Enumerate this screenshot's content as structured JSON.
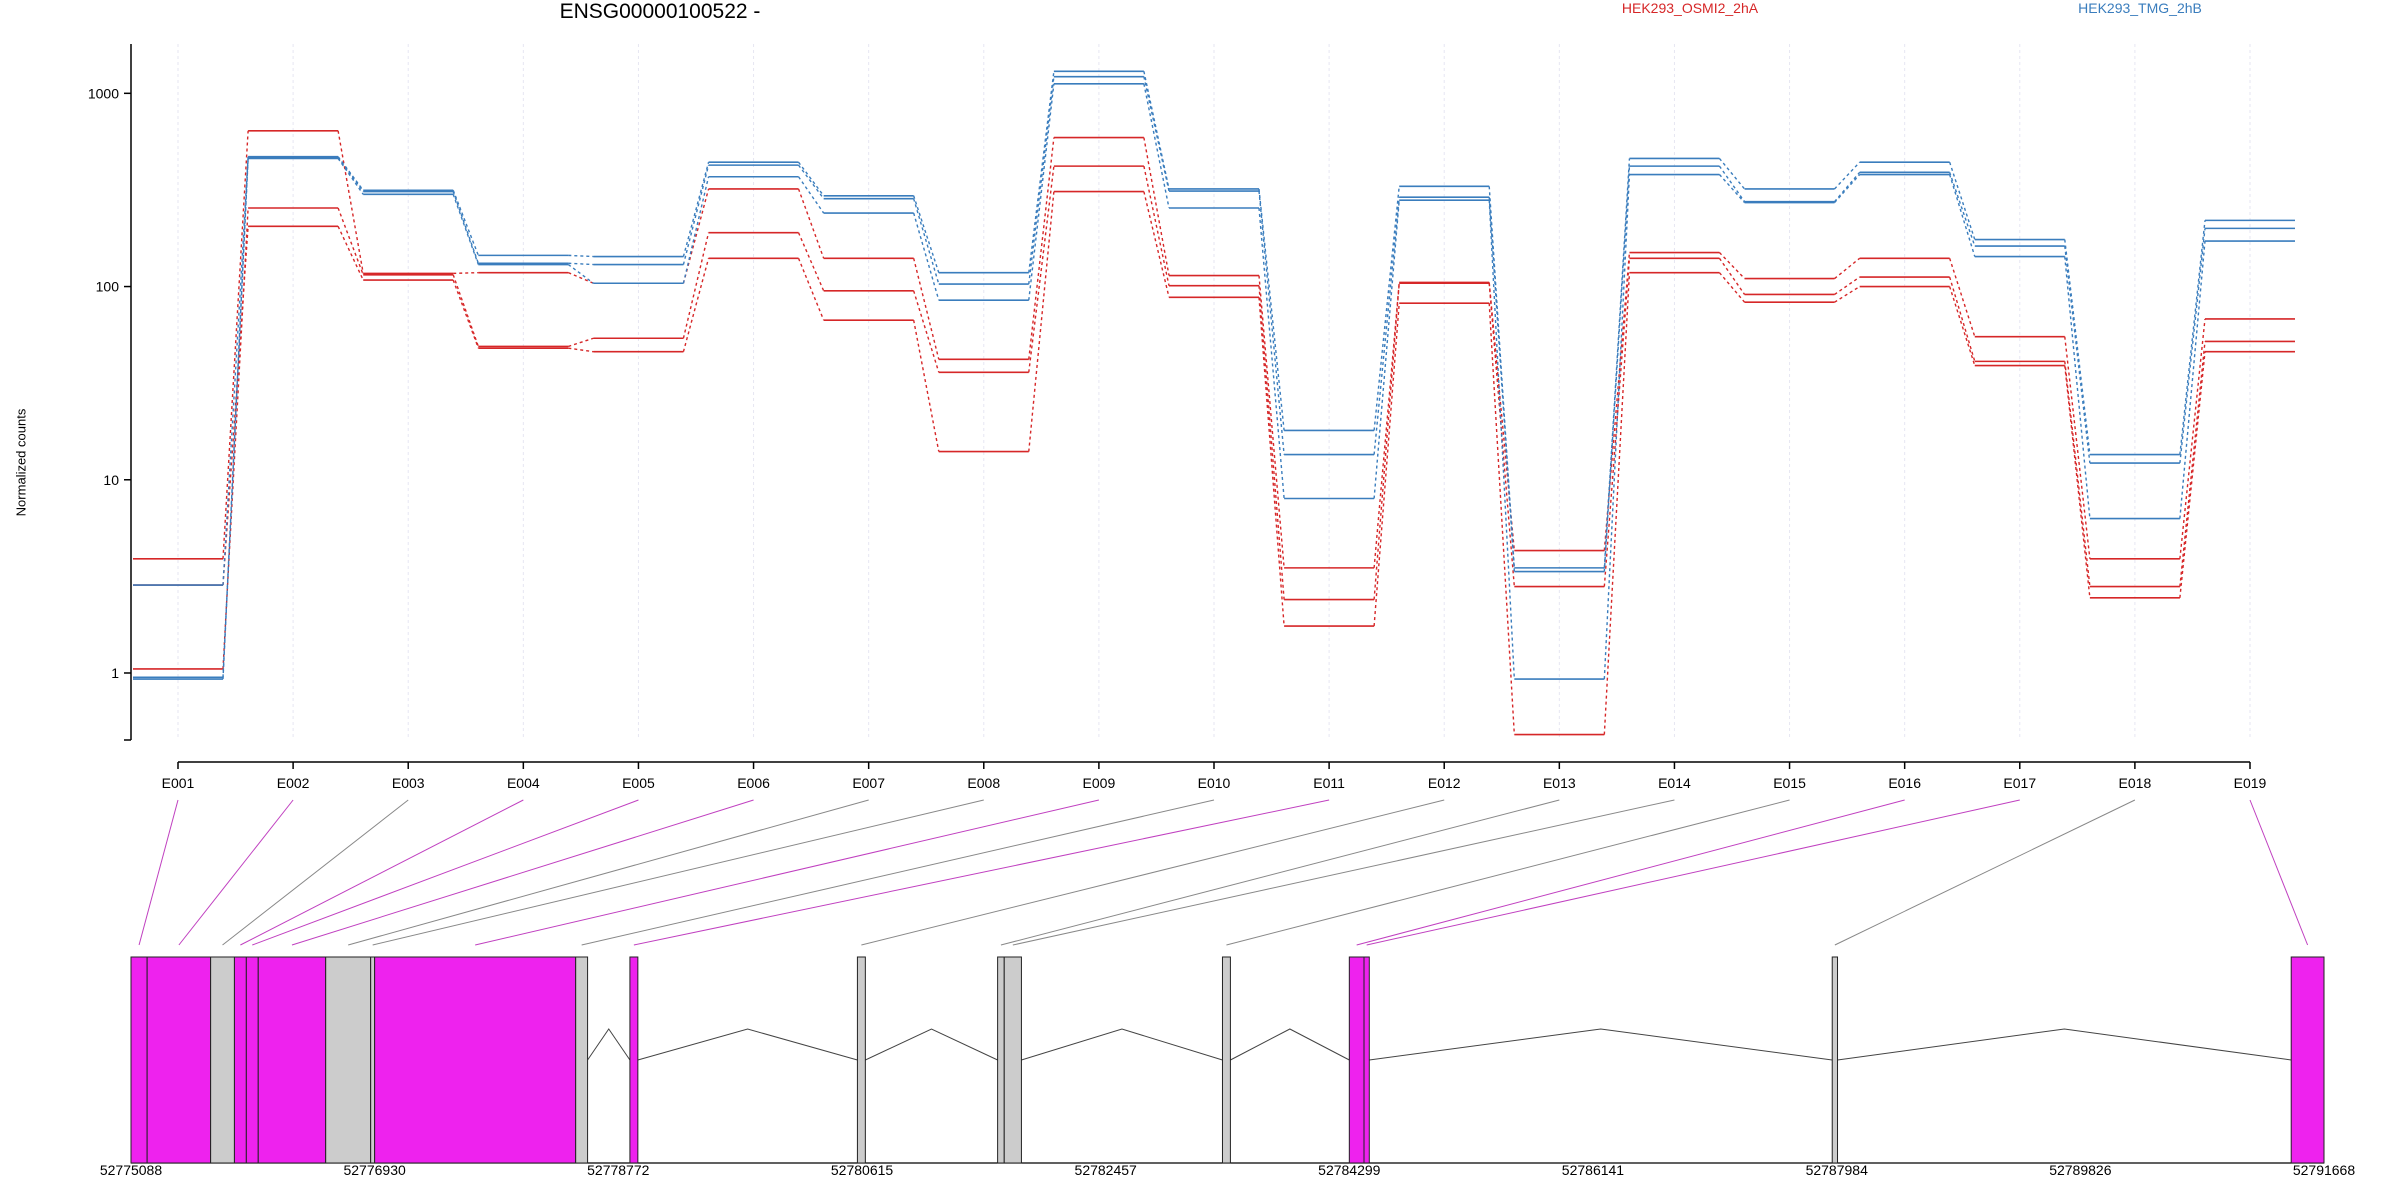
{
  "title": "ENSG00000100522 -",
  "ylabel": "Normalized counts",
  "legend": [
    {
      "name": "HEK293_OSMI2_2hA",
      "color": "#d62728"
    },
    {
      "name": "HEK293_TMG_2hB",
      "color": "#3a7dbd"
    }
  ],
  "chart_data": {
    "type": "line",
    "yscale": "log",
    "ylim": [
      0.45,
      1800
    ],
    "yticks": [
      1,
      10,
      100,
      1000
    ],
    "ytick_labels": [
      "1",
      "10",
      "100",
      "1000"
    ],
    "categories": [
      "E001",
      "E002",
      "E003",
      "E004",
      "E005",
      "E006",
      "E007",
      "E008",
      "E009",
      "E010",
      "E011",
      "E012",
      "E013",
      "E014",
      "E015",
      "E016",
      "E017",
      "E018",
      "E019"
    ],
    "series": [
      {
        "group": "HEK293_OSMI2_2hA",
        "color": "#d62728",
        "style": "solid",
        "values": [
          3.9,
          640,
          117,
          118,
          104,
          320,
          140,
          42,
          590,
          114,
          3.5,
          105,
          4.3,
          150,
          110,
          140,
          55,
          3.9,
          68
        ]
      },
      {
        "group": "HEK293_OSMI2_2hA",
        "color": "#d62728",
        "style": "solid",
        "values": [
          1.05,
          255,
          115,
          49,
          54,
          190,
          95,
          36,
          420,
          101,
          2.4,
          104,
          2.8,
          140,
          91,
          112,
          41,
          2.8,
          52
        ]
      },
      {
        "group": "HEK293_OSMI2_2hA",
        "color": "#d62728",
        "style": "solid",
        "values": [
          2.85,
          205,
          108,
          48,
          46,
          140,
          67,
          14,
          310,
          88,
          1.75,
          82,
          0.48,
          118,
          83,
          100,
          39,
          2.45,
          46
        ]
      },
      {
        "group": "HEK293_TMG_2hB",
        "color": "#3a7dbd",
        "style": "solid",
        "values": [
          2.85,
          470,
          315,
          145,
          143,
          440,
          295,
          118,
          1300,
          320,
          18,
          330,
          3.5,
          460,
          320,
          440,
          175,
          13.5,
          220
        ]
      },
      {
        "group": "HEK293_TMG_2hB",
        "color": "#3a7dbd",
        "style": "solid",
        "values": [
          0.95,
          465,
          310,
          132,
          130,
          425,
          285,
          103,
          1220,
          312,
          13.5,
          290,
          3.35,
          420,
          275,
          390,
          162,
          12.2,
          200
        ]
      },
      {
        "group": "HEK293_TMG_2hB",
        "color": "#3a7dbd",
        "style": "solid",
        "values": [
          0.93,
          460,
          300,
          130,
          104,
          370,
          240,
          85,
          1120,
          255,
          8.0,
          280,
          0.93,
          380,
          272,
          380,
          143,
          6.3,
          172
        ]
      }
    ],
    "gene_model": {
      "type": "exon-track",
      "coordinate_range": [
        52775088,
        52791668
      ],
      "coordinate_ticks": [
        52775088,
        52776930,
        52778772,
        52780615,
        52782457,
        52784299,
        52786141,
        52787984,
        52789826,
        52791668
      ],
      "highlight_color": "#ee22ee",
      "base_color": "#cccccc",
      "exons": [
        {
          "id": "E001",
          "start": 52775088,
          "end": 52775210,
          "highlight": true
        },
        {
          "id": "E002",
          "start": 52775210,
          "end": 52775690,
          "highlight": true
        },
        {
          "id": "E003",
          "start": 52775690,
          "end": 52775870,
          "highlight": false
        },
        {
          "id": "E004",
          "start": 52775870,
          "end": 52775960,
          "highlight": true
        },
        {
          "id": "E005",
          "start": 52775960,
          "end": 52776050,
          "highlight": true
        },
        {
          "id": "E006",
          "start": 52776050,
          "end": 52776560,
          "highlight": true
        },
        {
          "id": "E007",
          "start": 52776560,
          "end": 52776900,
          "highlight": false
        },
        {
          "id": "E008",
          "start": 52776900,
          "end": 52776930,
          "highlight": false
        },
        {
          "id": "E009",
          "start": 52776930,
          "end": 52778450,
          "highlight": true
        },
        {
          "id": "E010",
          "start": 52778450,
          "end": 52778540,
          "highlight": false
        },
        {
          "id": "E011",
          "start": 52778860,
          "end": 52778920,
          "highlight": true
        },
        {
          "id": "E012",
          "start": 52780580,
          "end": 52780640,
          "highlight": false
        },
        {
          "id": "E013",
          "start": 52781640,
          "end": 52781690,
          "highlight": false
        },
        {
          "id": "E014",
          "start": 52781690,
          "end": 52781820,
          "highlight": false
        },
        {
          "id": "E015",
          "start": 52783340,
          "end": 52783400,
          "highlight": false
        },
        {
          "id": "E016",
          "start": 52784299,
          "end": 52784410,
          "highlight": true
        },
        {
          "id": "E017",
          "start": 52784410,
          "end": 52784450,
          "highlight": true
        },
        {
          "id": "E018",
          "start": 52787950,
          "end": 52787990,
          "highlight": false
        },
        {
          "id": "E019",
          "start": 52791420,
          "end": 52791668,
          "highlight": true
        }
      ]
    }
  }
}
